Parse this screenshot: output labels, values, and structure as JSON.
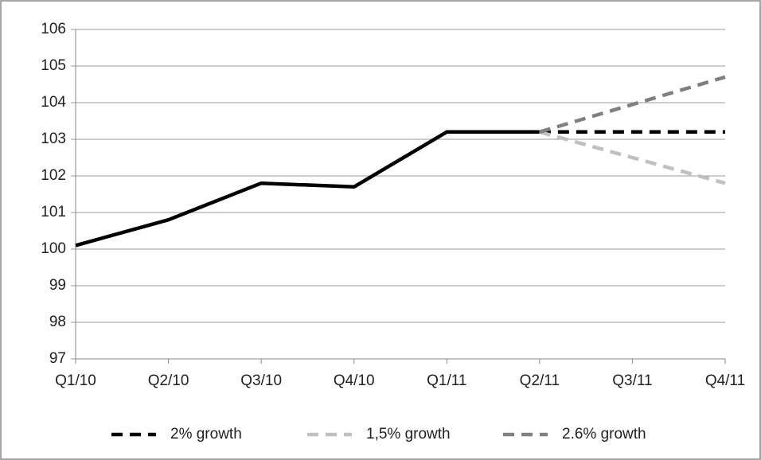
{
  "chart_data": {
    "type": "line",
    "categories": [
      "Q1/10",
      "Q2/10",
      "Q3/10",
      "Q4/10",
      "Q1/11",
      "Q2/11",
      "Q3/11",
      "Q4/11"
    ],
    "series": [
      {
        "color": "#000000",
        "dash": false,
        "values": [
          100.1,
          100.8,
          101.8,
          101.7,
          103.2,
          103.2,
          null,
          null
        ]
      },
      {
        "name": "2% growth",
        "color": "#000000",
        "dash": true,
        "values": [
          null,
          null,
          null,
          null,
          null,
          103.2,
          103.2,
          103.2
        ]
      },
      {
        "name": "1,5% growth",
        "color": "#c0c0c0",
        "dash": true,
        "values": [
          null,
          null,
          null,
          null,
          null,
          103.2,
          102.5,
          101.8
        ]
      },
      {
        "name": "2.6% growth",
        "color": "#808080",
        "dash": true,
        "values": [
          null,
          null,
          null,
          null,
          null,
          103.2,
          103.95,
          104.7
        ]
      }
    ],
    "ylim": [
      97,
      106
    ],
    "yticks": [
      97,
      98,
      99,
      100,
      101,
      102,
      103,
      104,
      105,
      106
    ],
    "grid": true,
    "legend": "bottom"
  }
}
